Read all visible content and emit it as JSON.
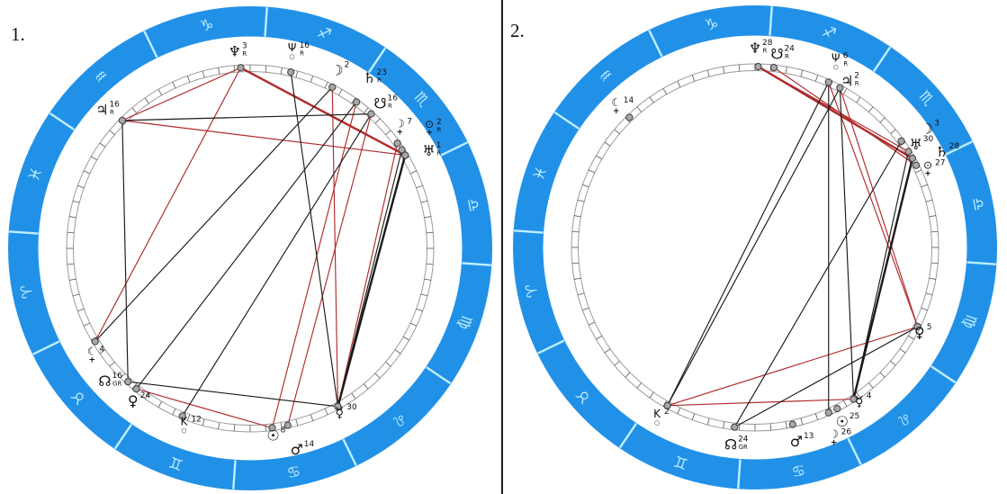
{
  "page": {
    "description": "Two astrological natal wheel charts side by side",
    "divider": true
  },
  "colors": {
    "ring_blue": "#2191e8",
    "ring_accent": "#bfeeff",
    "wheel_circle": "#9b9b9b",
    "tick": "#555555",
    "dot_fill": "#a8a8a8",
    "dot_stroke": "#3c3c3c",
    "aspect_red": "#b02a2a",
    "aspect_black": "#1a1a1a",
    "text": "#111111"
  },
  "zodiac": {
    "signs": [
      {
        "name": "capricorn",
        "glyph": "♑",
        "angle": 101
      },
      {
        "name": "aquarius",
        "glyph": "♒",
        "angle": 131
      },
      {
        "name": "pisces",
        "glyph": "♓",
        "angle": 161
      },
      {
        "name": "aries",
        "glyph": "♈",
        "angle": 191
      },
      {
        "name": "taurus",
        "glyph": "♉",
        "angle": 221
      },
      {
        "name": "gemini",
        "glyph": "♊",
        "angle": 251
      },
      {
        "name": "cancer",
        "glyph": "♋",
        "angle": 281
      },
      {
        "name": "leo",
        "glyph": "♌",
        "angle": 311
      },
      {
        "name": "virgo",
        "glyph": "♍",
        "angle": 341
      },
      {
        "name": "libra",
        "glyph": "♎",
        "angle": 11
      },
      {
        "name": "scorpio",
        "glyph": "♏",
        "angle": 41
      },
      {
        "name": "sagittarius",
        "glyph": "♐",
        "angle": 71
      }
    ],
    "boundary_start_angle": 86,
    "boundary_step": 30
  },
  "charts": [
    {
      "label": "1.",
      "planets": [
        {
          "name": "jupiter",
          "glyph": "♃",
          "degree": "16",
          "flag": "R",
          "angle": 135,
          "label_angle": 137,
          "label_r": 225
        },
        {
          "name": "neptune",
          "glyph": "♆",
          "degree": "3",
          "flag": "R",
          "angle": 93,
          "label_angle": 94.5,
          "label_r": 219
        },
        {
          "name": "proserpina",
          "glyph": "Ψ",
          "glyph2": "○",
          "degree": "16",
          "flag": "R",
          "angle": 77,
          "label_angle": 78,
          "label_r": 224
        },
        {
          "name": "moon",
          "glyph": "☽",
          "degree": "2",
          "flag": "",
          "angle": 63,
          "label_angle": 64,
          "label_r": 220
        },
        {
          "name": "saturn",
          "glyph": "♄",
          "degree": "23",
          "flag": "R",
          "angle": 54,
          "label_angle": 55,
          "label_r": 231
        },
        {
          "name": "south-node",
          "glyph": "☋",
          "degree": "16",
          "flag": "R",
          "angle": 48,
          "label_angle": 48,
          "label_r": 216
        },
        {
          "name": "selena",
          "glyph": "☽",
          "glyph2": "+",
          "degree": "7",
          "flag": "",
          "angle": 35.5,
          "label_angle": 39,
          "label_r": 214
        },
        {
          "name": "pluto",
          "glyph": "⊙",
          "glyph2": "+",
          "degree": "2",
          "flag": "R",
          "angle": 33,
          "label_angle": 34,
          "label_r": 240
        },
        {
          "name": "uranus",
          "glyph": "♅",
          "degree": "1",
          "flag": "R",
          "angle": 31,
          "label_angle": 28.5,
          "label_r": 226
        },
        {
          "name": "lilith",
          "glyph": "☾",
          "glyph2": "+",
          "bold": true,
          "degree": "4",
          "flag": "",
          "angle": 211,
          "label_angle": 214,
          "label_r": 212
        },
        {
          "name": "north-node",
          "glyph": "☊",
          "degree": "16",
          "flag": "GR",
          "angle": 227.5,
          "label_angle": 222.5,
          "label_r": 219
        },
        {
          "name": "venus",
          "glyph": "♀",
          "degree": "24",
          "flag": "",
          "angle": 231,
          "label_angle": 232.5,
          "label_r": 214
        },
        {
          "name": "chiron",
          "glyph": "K",
          "glyph2": "○",
          "degree": "12",
          "flag": "",
          "angle": 248,
          "label_angle": 249.5,
          "label_r": 210
        },
        {
          "name": "sun",
          "glyph": "☉",
          "degree": "8",
          "flag": "",
          "angle": 277,
          "label_angle": 277,
          "label_r": 210
        },
        {
          "name": "mars",
          "glyph": "♂",
          "degree": "14",
          "flag": "",
          "angle": 282,
          "label_angle": 283,
          "label_r": 230
        },
        {
          "name": "mercury",
          "glyph": "☿",
          "degree": "30",
          "flag": "",
          "angle": 299,
          "label_angle": 298.5,
          "label_r": 208
        }
      ],
      "aspects": {
        "red": [
          [
            "jupiter",
            "neptune",
            1
          ],
          [
            "jupiter",
            "uranus",
            1
          ],
          [
            "neptune",
            "uranus",
            2
          ],
          [
            "neptune",
            "lilith",
            1
          ],
          [
            "moon",
            "mercury",
            1
          ],
          [
            "saturn",
            "sun",
            1
          ],
          [
            "south-node",
            "mars",
            1
          ],
          [
            "selena",
            "mercury",
            1
          ],
          [
            "venus",
            "sun",
            1
          ]
        ],
        "black": [
          [
            "jupiter",
            "south-node",
            1
          ],
          [
            "jupiter",
            "north-node",
            1
          ],
          [
            "north-node",
            "mercury",
            1
          ],
          [
            "moon",
            "lilith",
            1
          ],
          [
            "saturn",
            "venus",
            1
          ],
          [
            "south-node",
            "chiron",
            1
          ],
          [
            "uranus",
            "mercury",
            2
          ],
          [
            "pluto",
            "mercury",
            1
          ],
          [
            "proserpina",
            "mercury",
            1
          ]
        ]
      }
    },
    {
      "label": "2.",
      "planets": [
        {
          "name": "neptune",
          "glyph": "♆",
          "degree": "28",
          "flag": "R",
          "angle": 89,
          "label_angle": 90,
          "label_r": 221
        },
        {
          "name": "south-node",
          "glyph": "☋",
          "degree": "24",
          "flag": "R",
          "angle": 84,
          "label_angle": 83.5,
          "label_r": 216
        },
        {
          "name": "proserpina",
          "glyph": "Ψ",
          "glyph2": "○",
          "degree": "6",
          "flag": "R",
          "angle": 66,
          "label_angle": 66.5,
          "label_r": 225
        },
        {
          "name": "jupiter",
          "glyph": "♃",
          "degree": "2",
          "flag": "R",
          "angle": 62,
          "label_angle": 61,
          "label_r": 211
        },
        {
          "name": "moon",
          "glyph": "☽",
          "degree": "3",
          "flag": "",
          "angle": 36,
          "label_angle": 34.5,
          "label_r": 232
        },
        {
          "name": "uranus",
          "glyph": "♅",
          "degree": "30",
          "flag": "",
          "angle": 32,
          "label_angle": 32.5,
          "label_r": 212
        },
        {
          "name": "saturn",
          "glyph": "♄",
          "degree": "28",
          "flag": "",
          "angle": 29.5,
          "label_angle": 27,
          "label_r": 233
        },
        {
          "name": "pluto",
          "glyph": "⊙",
          "glyph2": "+",
          "degree": "27",
          "flag": "",
          "angle": 27,
          "label_angle": 24.5,
          "label_r": 211
        },
        {
          "name": "lilith",
          "glyph": "☾",
          "glyph2": "+",
          "bold": true,
          "degree": "14",
          "flag": "",
          "angle": 134,
          "label_angle": 134.5,
          "label_r": 220
        },
        {
          "name": "venus",
          "glyph": "♀",
          "degree": "5",
          "flag": "",
          "angle": 334,
          "label_angle": 332.5,
          "label_r": 206
        },
        {
          "name": "mercury",
          "glyph": "☿",
          "degree": "4",
          "flag": "",
          "angle": 303,
          "label_angle": 304,
          "label_r": 207
        },
        {
          "name": "selena",
          "glyph": "☽",
          "glyph2": "+",
          "degree": "26",
          "flag": "",
          "angle": 297,
          "label_angle": 292.5,
          "label_r": 229
        },
        {
          "name": "sun",
          "glyph": "☉",
          "degree": "25",
          "flag": "",
          "angle": 294,
          "label_angle": 296.5,
          "label_r": 217
        },
        {
          "name": "mars",
          "glyph": "♂",
          "degree": "13",
          "flag": "",
          "angle": 282,
          "label_angle": 282,
          "label_r": 221
        },
        {
          "name": "north-node",
          "glyph": "☊",
          "degree": "24",
          "flag": "GR",
          "angle": 263.5,
          "label_angle": 263,
          "label_r": 221
        },
        {
          "name": "chiron",
          "glyph": "K",
          "glyph2": "○",
          "degree": "2",
          "flag": "",
          "angle": 241,
          "label_angle": 240,
          "label_r": 218
        }
      ],
      "aspects": {
        "red": [
          [
            "neptune",
            "saturn",
            2
          ],
          [
            "neptune",
            "uranus",
            1
          ],
          [
            "south-node",
            "pluto",
            1
          ],
          [
            "jupiter",
            "venus",
            1
          ],
          [
            "proserpina",
            "venus",
            1
          ],
          [
            "chiron",
            "venus",
            1
          ],
          [
            "chiron",
            "mercury",
            1
          ]
        ],
        "black": [
          [
            "chiron",
            "jupiter",
            1
          ],
          [
            "chiron",
            "proserpina",
            1
          ],
          [
            "jupiter",
            "mercury",
            1
          ],
          [
            "proserpina",
            "sun",
            1
          ],
          [
            "saturn",
            "mercury",
            2
          ],
          [
            "uranus",
            "mercury",
            1
          ],
          [
            "moon",
            "north-node",
            1
          ],
          [
            "venus",
            "north-node",
            1
          ]
        ]
      }
    }
  ]
}
